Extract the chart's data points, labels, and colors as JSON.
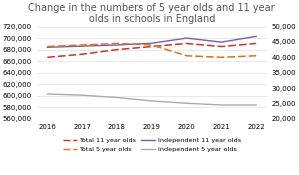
{
  "title": "Change in the numbers of 5 year olds and 11 year\nolds in schools in England",
  "years": [
    2016,
    2017,
    2018,
    2019,
    2020,
    2021,
    2022
  ],
  "indep_11": [
    684000,
    686000,
    688000,
    691000,
    700000,
    693000,
    703000
  ],
  "indep_5": [
    603000,
    601000,
    597000,
    591000,
    587000,
    584000,
    584000
  ],
  "total_11": [
    40000,
    41000,
    42500,
    43500,
    44500,
    43500,
    44500
  ],
  "total_5": [
    43500,
    44000,
    44500,
    44000,
    40500,
    40000,
    40500
  ],
  "left_ylim": [
    560000,
    720000
  ],
  "right_ylim": [
    20000,
    50000
  ],
  "left_yticks": [
    560000,
    580000,
    600000,
    620000,
    640000,
    660000,
    680000,
    700000,
    720000
  ],
  "right_yticks": [
    20000,
    25000,
    30000,
    35000,
    40000,
    45000,
    50000
  ],
  "color_total_11": "#c0392b",
  "color_total_5": "#e07020",
  "color_indep_11": "#7b5ea7",
  "color_indep_5": "#aaaaaa",
  "title_fontsize": 7.0,
  "tick_fontsize": 5.0,
  "legend_fontsize": 4.6,
  "background_color": "#ffffff"
}
